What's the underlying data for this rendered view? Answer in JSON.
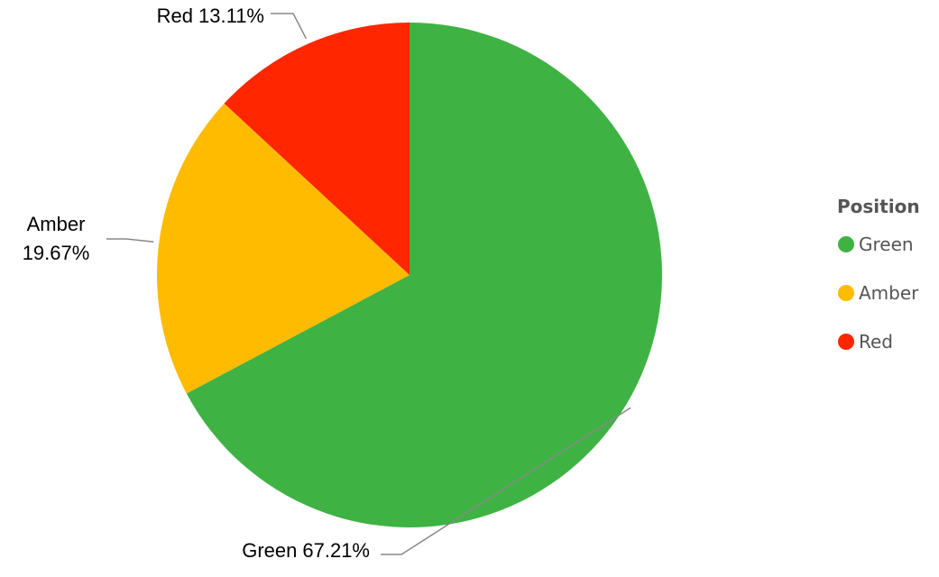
{
  "chart_data": {
    "type": "pie",
    "categories": [
      "Green",
      "Amber",
      "Red"
    ],
    "values": [
      67.21,
      19.67,
      13.11
    ],
    "value_labels": [
      "67.21%",
      "19.67%",
      "13.11%"
    ],
    "colors": [
      "#3fb244",
      "#ffbb00",
      "#ff2600"
    ],
    "legend_title": "Position",
    "legend": "right"
  }
}
